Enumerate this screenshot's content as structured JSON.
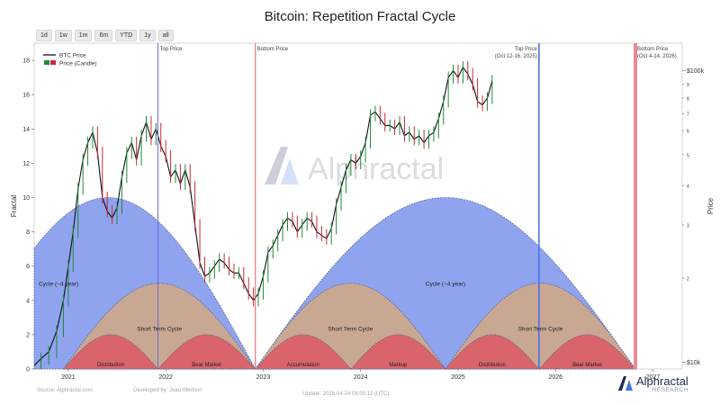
{
  "title": "Bitcoin: Repetition Fractal Cycle",
  "range_buttons": [
    "1d",
    "1w",
    "1m",
    "6m",
    "YTD",
    "1y",
    "all"
  ],
  "footer": {
    "source": "Source: Alphractal.com",
    "developer": "Developed by: Joao Wedson",
    "update": "Update: 2025-04-24 08:00:13 (UTC)"
  },
  "brand": {
    "name": "Alphractal",
    "sub": "RESEARCH",
    "watermark": "Alphractal"
  },
  "colors": {
    "long_cycle": "#8fa3ee",
    "short_cycle": "#c9a893",
    "phase": "#d9646c",
    "top_line": "#6b6bdc",
    "bottom_line": "#e05a64",
    "future_top": "#4a72e4",
    "future_bottom": "#e88a94",
    "candle_up": "#1e8a3a",
    "candle_down": "#c7283a"
  },
  "chart_data": {
    "type": "line",
    "title": "Bitcoin: Repetition Fractal Cycle",
    "ylabel_left": "Fractal",
    "ylabel_right": "Price",
    "ylim": [
      0,
      19
    ],
    "yticks": [
      0,
      2,
      4,
      6,
      8,
      10,
      12,
      14,
      16,
      18
    ],
    "xlim": [
      2020.65,
      2027.3
    ],
    "xticks": [
      {
        "x": 2021.0,
        "label": "2021"
      },
      {
        "x": 2022.0,
        "label": "2022"
      },
      {
        "x": 2023.0,
        "label": "2023"
      },
      {
        "x": 2024.0,
        "label": "2024"
      },
      {
        "x": 2025.0,
        "label": "2025"
      },
      {
        "x": 2026.0,
        "label": "2026"
      },
      {
        "x": 2027.0,
        "label": "2027"
      }
    ],
    "right_axis": [
      {
        "y": 17.4,
        "label": "$100k",
        "major": true
      },
      {
        "y": 16.6,
        "label": "9",
        "major": false
      },
      {
        "y": 15.8,
        "label": "8",
        "major": false
      },
      {
        "y": 14.9,
        "label": "7",
        "major": false
      },
      {
        "y": 13.9,
        "label": "6",
        "major": false
      },
      {
        "y": 12.5,
        "label": "5",
        "major": false
      },
      {
        "y": 10.7,
        "label": "4",
        "major": false
      },
      {
        "y": 8.4,
        "label": "3",
        "major": false
      },
      {
        "y": 5.3,
        "label": "2",
        "major": false
      },
      {
        "y": 0.4,
        "label": "$10k",
        "major": true
      }
    ],
    "legend": [
      "BTC Price",
      "Price (Candle)"
    ],
    "legend_position": "top-left",
    "vertical_markers": [
      {
        "x": 2021.92,
        "label": "Top Price",
        "kind": "top"
      },
      {
        "x": 2022.92,
        "label": "Bottom Price",
        "kind": "bottom"
      },
      {
        "x": 2025.83,
        "label": "Top Price\n(Oct 12-16, 2025)",
        "kind": "future_top"
      },
      {
        "x": 2026.82,
        "label": "Bottom Price\n(Oct 4-14, 2026)",
        "kind": "future_bottom"
      }
    ],
    "long_cycles": [
      {
        "start": 2019.9,
        "end": 2022.92,
        "peak": 10.0,
        "label": "Cycle (~4 year)"
      },
      {
        "start": 2022.92,
        "end": 2026.82,
        "peak": 10.0,
        "label": "Cycle (~4 year)"
      }
    ],
    "short_cycles": [
      {
        "start": 2020.95,
        "end": 2022.92,
        "peak": 5.0,
        "label": "Short Term Cycle"
      },
      {
        "start": 2022.92,
        "end": 2024.87,
        "peak": 5.0,
        "label": "Short Term Cycle"
      },
      {
        "start": 2024.87,
        "end": 2026.82,
        "peak": 5.0,
        "label": "Short Term Cycle"
      }
    ],
    "phases": [
      {
        "start": 2020.95,
        "end": 2021.92,
        "peak": 2.0,
        "label": "Distribution"
      },
      {
        "start": 2021.92,
        "end": 2022.92,
        "peak": 2.0,
        "label": "Bear Market"
      },
      {
        "start": 2022.92,
        "end": 2023.9,
        "peak": 2.0,
        "label": "Accumulation"
      },
      {
        "start": 2023.9,
        "end": 2024.87,
        "peak": 2.0,
        "label": "Markup"
      },
      {
        "start": 2024.87,
        "end": 2025.83,
        "peak": 2.0,
        "label": "Distribution"
      },
      {
        "start": 2025.83,
        "end": 2026.82,
        "peak": 2.0,
        "label": "Bear Market"
      }
    ],
    "price_series": {
      "name": "BTC Price",
      "x": [
        2020.65,
        2020.72,
        2020.8,
        2020.88,
        2020.95,
        2021.0,
        2021.05,
        2021.1,
        2021.15,
        2021.2,
        2021.25,
        2021.3,
        2021.35,
        2021.4,
        2021.45,
        2021.5,
        2021.55,
        2021.6,
        2021.65,
        2021.7,
        2021.75,
        2021.8,
        2021.85,
        2021.9,
        2021.95,
        2022.0,
        2022.05,
        2022.1,
        2022.15,
        2022.2,
        2022.25,
        2022.3,
        2022.35,
        2022.4,
        2022.45,
        2022.5,
        2022.55,
        2022.6,
        2022.65,
        2022.7,
        2022.75,
        2022.8,
        2022.85,
        2022.9,
        2022.95,
        2023.0,
        2023.05,
        2023.1,
        2023.15,
        2023.2,
        2023.25,
        2023.3,
        2023.35,
        2023.4,
        2023.45,
        2023.5,
        2023.55,
        2023.6,
        2023.65,
        2023.7,
        2023.75,
        2023.8,
        2023.85,
        2023.9,
        2023.95,
        2024.0,
        2024.05,
        2024.1,
        2024.15,
        2024.2,
        2024.25,
        2024.3,
        2024.35,
        2024.4,
        2024.45,
        2024.5,
        2024.55,
        2024.6,
        2024.65,
        2024.7,
        2024.75,
        2024.8,
        2024.85,
        2024.9,
        2024.95,
        2025.0,
        2025.05,
        2025.1,
        2025.15,
        2025.2,
        2025.25,
        2025.3,
        2025.35
      ],
      "y": [
        0.2,
        0.6,
        1.0,
        2.2,
        4.0,
        6.0,
        8.0,
        10.5,
        12.2,
        13.2,
        13.8,
        12.6,
        10.0,
        9.2,
        8.8,
        9.4,
        11.2,
        12.6,
        13.2,
        12.2,
        13.6,
        14.4,
        13.4,
        14.0,
        13.0,
        12.4,
        11.2,
        11.6,
        10.8,
        11.6,
        10.6,
        8.4,
        6.2,
        5.4,
        5.6,
        6.0,
        6.4,
        6.2,
        5.8,
        5.6,
        5.6,
        5.0,
        4.4,
        4.0,
        4.4,
        5.4,
        6.8,
        7.2,
        7.8,
        8.4,
        8.8,
        8.6,
        8.0,
        8.4,
        8.8,
        8.6,
        8.0,
        7.8,
        7.6,
        8.2,
        9.6,
        10.6,
        11.6,
        12.2,
        12.0,
        12.4,
        13.2,
        14.8,
        15.0,
        14.6,
        14.2,
        14.2,
        14.0,
        14.4,
        13.6,
        13.8,
        13.4,
        13.6,
        13.2,
        13.6,
        13.8,
        14.6,
        15.6,
        17.0,
        17.4,
        17.0,
        17.6,
        17.2,
        16.6,
        15.6,
        15.4,
        15.8,
        16.8
      ]
    },
    "annotations": [
      "Cycle (~4 year)",
      "Cycle (~4 year)",
      "Short Term Cycle",
      "Short Term Cycle",
      "Short Term Cycle"
    ]
  }
}
